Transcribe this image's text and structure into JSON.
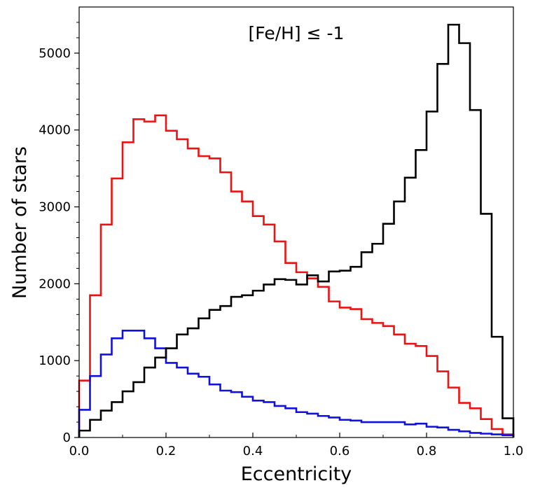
{
  "chart_data": {
    "type": "histogram",
    "title": "",
    "annotation": "[Fe/H] ≤ -1",
    "xlabel": "Eccentricity",
    "ylabel": "Number of stars",
    "xlim": [
      0.0,
      1.0
    ],
    "ylim": [
      0,
      5600
    ],
    "bin_width": 0.025,
    "xticks": [
      0.0,
      0.2,
      0.4,
      0.6,
      0.8,
      1.0
    ],
    "xtick_labels": [
      "0.0",
      "0.2",
      "0.4",
      "0.6",
      "0.8",
      "1.0"
    ],
    "yticks": [
      0,
      1000,
      2000,
      3000,
      4000,
      5000
    ],
    "ytick_labels": [
      "0",
      "1000",
      "2000",
      "3000",
      "4000",
      "5000"
    ],
    "series": [
      {
        "name": "red",
        "color": "#ee1111",
        "values": [
          740,
          1850,
          2770,
          3370,
          3840,
          4140,
          4110,
          4190,
          3990,
          3880,
          3760,
          3660,
          3630,
          3450,
          3200,
          3070,
          2880,
          2770,
          2550,
          2270,
          2150,
          2070,
          1960,
          1770,
          1690,
          1670,
          1540,
          1490,
          1450,
          1340,
          1220,
          1190,
          1060,
          860,
          650,
          450,
          380,
          240,
          110,
          40
        ]
      },
      {
        "name": "blue",
        "color": "#1111dd",
        "values": [
          360,
          800,
          1080,
          1290,
          1390,
          1390,
          1290,
          1160,
          970,
          910,
          830,
          790,
          690,
          610,
          590,
          530,
          480,
          460,
          410,
          380,
          330,
          310,
          280,
          260,
          230,
          220,
          200,
          200,
          200,
          200,
          170,
          180,
          140,
          130,
          100,
          80,
          60,
          50,
          40,
          30
        ]
      },
      {
        "name": "black",
        "color": "#000000",
        "values": [
          90,
          230,
          350,
          460,
          600,
          720,
          910,
          1040,
          1160,
          1340,
          1420,
          1550,
          1660,
          1710,
          1830,
          1850,
          1910,
          1990,
          2060,
          2050,
          1990,
          2110,
          2030,
          2160,
          2170,
          2220,
          2410,
          2520,
          2780,
          3070,
          3380,
          3740,
          4240,
          4860,
          5370,
          5130,
          4260,
          2910,
          1310,
          250
        ]
      }
    ]
  }
}
